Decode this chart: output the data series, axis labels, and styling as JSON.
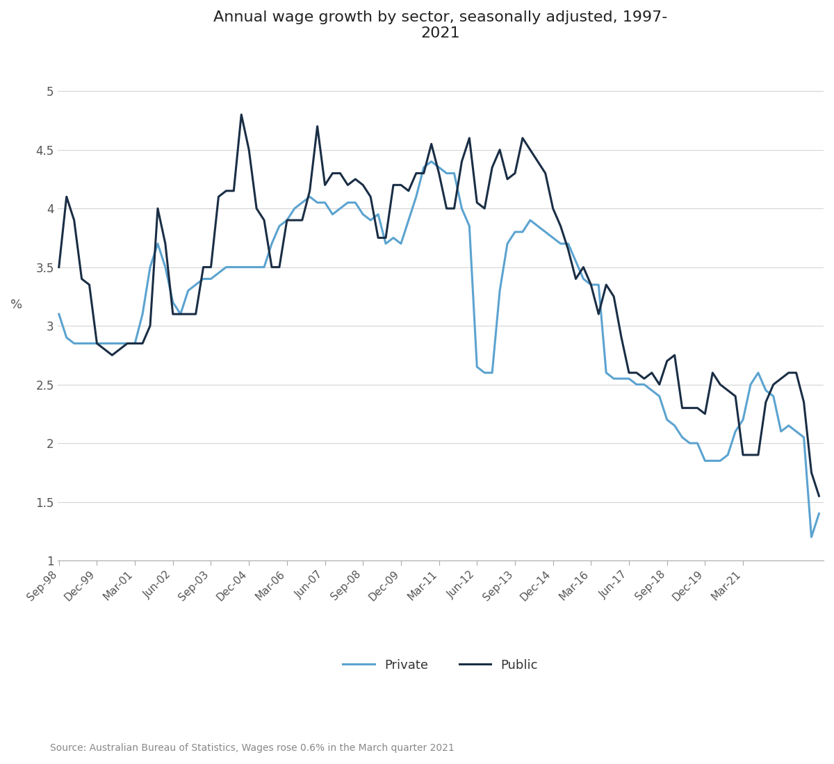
{
  "title": "Annual wage growth by sector, seasonally adjusted, 1997-\n2021",
  "ylabel": "%",
  "source": "Source: Australian Bureau of Statistics, Wages rose 0.6% in the March quarter 2021",
  "private_color": "#5ba3d0",
  "public_color": "#1a2e45",
  "background_color": "#ffffff",
  "ylim": [
    1.0,
    5.25
  ],
  "yticks": [
    1.0,
    1.5,
    2.0,
    2.5,
    3.0,
    3.5,
    4.0,
    4.5,
    5.0
  ],
  "xtick_labels": [
    "Sep-98",
    "Dec-99",
    "Mar-01",
    "Jun-02",
    "Sep-03",
    "Dec-04",
    "Mar-06",
    "Jun-07",
    "Sep-08",
    "Dec-09",
    "Mar-11",
    "Jun-12",
    "Sep-13",
    "Dec-14",
    "Mar-16",
    "Jun-17",
    "Sep-18",
    "Dec-19",
    "Mar-21"
  ],
  "labels": [
    "Private",
    "Public"
  ],
  "private": [
    3.1,
    2.9,
    2.85,
    2.85,
    2.85,
    2.85,
    2.85,
    2.85,
    2.85,
    2.85,
    2.85,
    3.1,
    3.5,
    3.7,
    3.5,
    3.2,
    3.1,
    3.3,
    3.35,
    3.4,
    3.4,
    3.45,
    3.5,
    3.5,
    3.5,
    3.5,
    3.5,
    3.5,
    3.7,
    3.85,
    3.9,
    4.0,
    4.05,
    4.1,
    4.05,
    4.05,
    3.95,
    4.0,
    4.05,
    4.05,
    3.95,
    3.9,
    3.95,
    3.7,
    3.75,
    3.7,
    3.9,
    4.1,
    4.35,
    4.4,
    4.35,
    4.3,
    4.3,
    4.0,
    3.85,
    2.65,
    2.6,
    2.6,
    3.3,
    3.7,
    3.8,
    3.8,
    3.9,
    3.85,
    3.8,
    3.75,
    3.7,
    3.7,
    3.55,
    3.4,
    3.35,
    3.35,
    2.6,
    2.55,
    2.55,
    2.55,
    2.5,
    2.5,
    2.45,
    2.4,
    2.2,
    2.15,
    2.05,
    2.0,
    2.0,
    1.85,
    1.85,
    1.85,
    1.9,
    2.1,
    2.2,
    2.5,
    2.6,
    2.45,
    2.4,
    2.1,
    2.15,
    2.1,
    2.05,
    1.2,
    1.4
  ],
  "public": [
    3.5,
    4.1,
    3.9,
    3.4,
    3.35,
    2.85,
    2.8,
    2.75,
    2.8,
    2.85,
    2.85,
    2.85,
    3.0,
    4.0,
    3.7,
    3.1,
    3.1,
    3.1,
    3.1,
    3.5,
    3.5,
    4.1,
    4.15,
    4.15,
    4.8,
    4.5,
    4.0,
    3.9,
    3.5,
    3.5,
    3.9,
    3.9,
    3.9,
    4.15,
    4.7,
    4.2,
    4.3,
    4.3,
    4.2,
    4.25,
    4.2,
    4.1,
    3.75,
    3.75,
    4.2,
    4.2,
    4.15,
    4.3,
    4.3,
    4.55,
    4.3,
    4.0,
    4.0,
    4.4,
    4.6,
    4.05,
    4.0,
    4.35,
    4.5,
    4.25,
    4.3,
    4.6,
    4.5,
    4.4,
    4.3,
    4.0,
    3.85,
    3.65,
    3.4,
    3.5,
    3.35,
    3.1,
    3.35,
    3.25,
    2.9,
    2.6,
    2.6,
    2.55,
    2.6,
    2.5,
    2.7,
    2.75,
    2.3,
    2.3,
    2.3,
    2.25,
    2.6,
    2.5,
    2.45,
    2.4,
    1.9,
    1.9,
    1.9,
    2.35,
    2.5,
    2.55,
    2.6,
    2.6,
    2.35,
    1.75,
    1.55
  ]
}
